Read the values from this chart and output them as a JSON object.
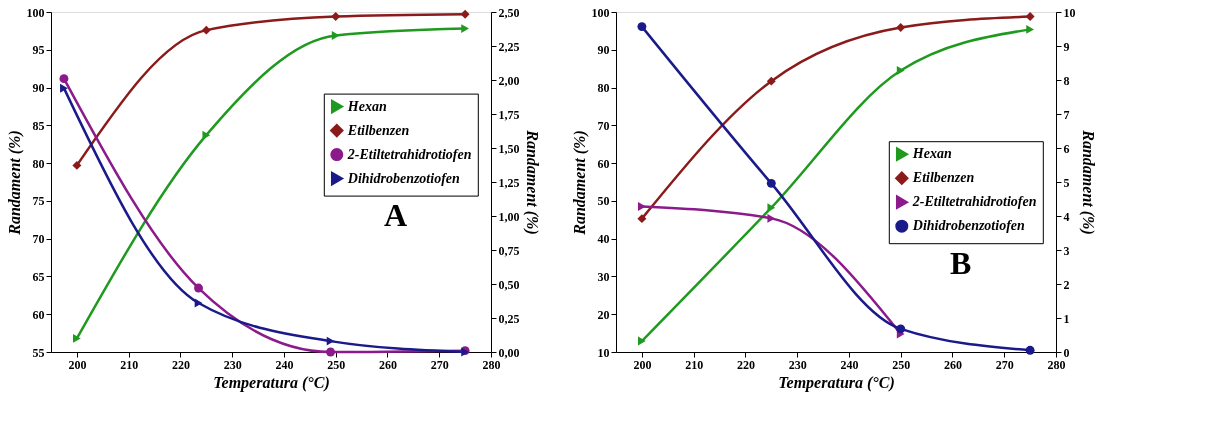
{
  "chart_data": [
    {
      "type": "line",
      "xlabel": "Temperatura (°C)",
      "ylabel": "Randament (%)",
      "y2label": "Randament (%)",
      "annotations": [
        "A"
      ],
      "legend": "top right",
      "grid": false,
      "xlim": [
        195,
        280
      ],
      "xticks": [
        200,
        210,
        220,
        230,
        240,
        250,
        260,
        270,
        280
      ],
      "ylim": [
        55,
        100
      ],
      "yticks": [
        55,
        60,
        65,
        70,
        75,
        80,
        85,
        90,
        95,
        100
      ],
      "y2lim": [
        0,
        2.5
      ],
      "y2ticks": [
        {
          "value": 0,
          "label": "0,00"
        },
        {
          "value": 0.25,
          "label": "0,25"
        },
        {
          "value": 0.5,
          "label": "0,50"
        },
        {
          "value": 0.75,
          "label": "0,75"
        },
        {
          "value": 1,
          "label": "1,00"
        },
        {
          "value": 1.25,
          "label": "1,25"
        },
        {
          "value": 1.5,
          "label": "1,50"
        },
        {
          "value": 1.75,
          "label": "1,75"
        },
        {
          "value": 2,
          "label": "2,00"
        },
        {
          "value": 2.25,
          "label": "2,25"
        },
        {
          "value": 2.5,
          "label": "2,50"
        }
      ],
      "series": [
        {
          "name": "Hexan",
          "color": "#1f9a1f",
          "marker": "triangle",
          "x": [
            200,
            225,
            250,
            275
          ],
          "values": [
            56.8,
            83.7,
            96.9,
            97.8
          ]
        },
        {
          "name": "Etilbenzen",
          "color": "#8b1a1a",
          "marker": "diamond",
          "x": [
            200,
            225,
            250,
            275
          ],
          "values": [
            79.7,
            97.6,
            99.4,
            99.7
          ]
        },
        {
          "name": "2-Etiltetrahidrotiofen",
          "color": "#8b1a8b",
          "marker": "circle",
          "axis": "y2",
          "x": [
            197.5,
            223.5,
            249,
            275
          ],
          "values": [
            2.01,
            0.47,
            0.0,
            0.01
          ]
        },
        {
          "name": "Dihidrobenzotiofen",
          "color": "#1a1a8b",
          "marker": "triangle",
          "axis": "y2",
          "x": [
            197.5,
            223.5,
            249,
            275
          ],
          "values": [
            1.94,
            0.36,
            0.08,
            0.0
          ]
        }
      ]
    },
    {
      "type": "line",
      "xlabel": "Temperatura (°C)",
      "ylabel": "Randament (%)",
      "y2label": "Randament (%)",
      "annotations": [
        "B"
      ],
      "legend": "right",
      "grid": false,
      "xlim": [
        195,
        280
      ],
      "xticks": [
        200,
        210,
        220,
        230,
        240,
        250,
        260,
        270,
        280
      ],
      "ylim": [
        10,
        100
      ],
      "yticks": [
        10,
        20,
        30,
        40,
        50,
        60,
        70,
        80,
        90,
        100
      ],
      "y2lim": [
        0,
        10
      ],
      "y2ticks": [
        0,
        1,
        2,
        3,
        4,
        5,
        6,
        7,
        8,
        9,
        10
      ],
      "series": [
        {
          "name": "Hexan",
          "color": "#1f9a1f",
          "marker": "triangle",
          "x": [
            200,
            225,
            250,
            275
          ],
          "values": [
            12.9,
            48.2,
            84.5,
            95.4
          ]
        },
        {
          "name": "Etilbenzen",
          "color": "#8b1a1a",
          "marker": "diamond",
          "x": [
            200,
            225,
            250,
            275
          ],
          "values": [
            45.3,
            81.7,
            95.9,
            98.8
          ]
        },
        {
          "name": "2-Etiltetrahidrotiofen",
          "color": "#8b1a8b",
          "marker": "triangle",
          "axis": "y2",
          "x": [
            200,
            225,
            250
          ],
          "values": [
            4.28,
            3.93,
            0.53
          ]
        },
        {
          "name": "Dihidrobenzotiofen",
          "color": "#1a1a8b",
          "marker": "circle",
          "axis": "y2",
          "x": [
            200,
            225,
            250,
            275
          ],
          "values": [
            9.57,
            4.96,
            0.68,
            0.05
          ]
        }
      ]
    }
  ]
}
